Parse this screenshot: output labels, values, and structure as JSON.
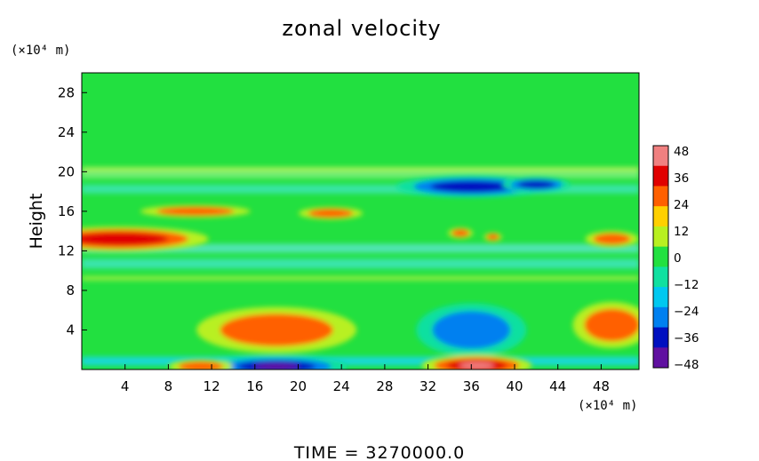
{
  "chart_data": {
    "type": "heatmap",
    "title": "zonal velocity",
    "ylabel": "Height",
    "y_unit": "(×10⁴ m)",
    "x_unit": "(×10⁴ m)",
    "xlim": [
      0,
      51.5
    ],
    "ylim": [
      0,
      30
    ],
    "x_ticks": [
      "4",
      "8",
      "12",
      "16",
      "20",
      "24",
      "28",
      "32",
      "36",
      "40",
      "44",
      "48"
    ],
    "y_ticks": [
      "4",
      "8",
      "12",
      "16",
      "20",
      "24",
      "28"
    ],
    "colorbar": {
      "range": [
        -48,
        48
      ],
      "ticks": [
        "48",
        "36",
        "24",
        "12",
        "0",
        "−12",
        "−24",
        "−36",
        "−48"
      ],
      "colors": [
        "#f08080",
        "#e00000",
        "#ff6000",
        "#ffd000",
        "#b8f020",
        "#22e040",
        "#10e0a0",
        "#00c8f0",
        "#0080f0",
        "#0010c0",
        "#6010a0"
      ]
    },
    "footer": "TIME  =  3270000.0",
    "features": [
      {
        "x": 3.5,
        "y": 13.2,
        "value": 32
      },
      {
        "x": 10.5,
        "y": 16.0,
        "value": 28
      },
      {
        "x": 23,
        "y": 15.8,
        "value": 22
      },
      {
        "x": 35,
        "y": 13.8,
        "value": 26
      },
      {
        "x": 38,
        "y": 13.4,
        "value": 30
      },
      {
        "x": 49,
        "y": 13.2,
        "value": 30
      },
      {
        "x": 36,
        "y": 18.5,
        "value": -38
      },
      {
        "x": 42,
        "y": 18.7,
        "value": -36
      },
      {
        "x": 18,
        "y": 4.0,
        "value": 28
      },
      {
        "x": 49,
        "y": 4.5,
        "value": 24
      },
      {
        "x": 36,
        "y": 4.0,
        "value": -24
      },
      {
        "x": 18,
        "y": 0.3,
        "value": -40
      },
      {
        "x": 36.5,
        "y": 0.4,
        "value": 40
      },
      {
        "x": 11,
        "y": 0.3,
        "value": 30
      }
    ]
  }
}
